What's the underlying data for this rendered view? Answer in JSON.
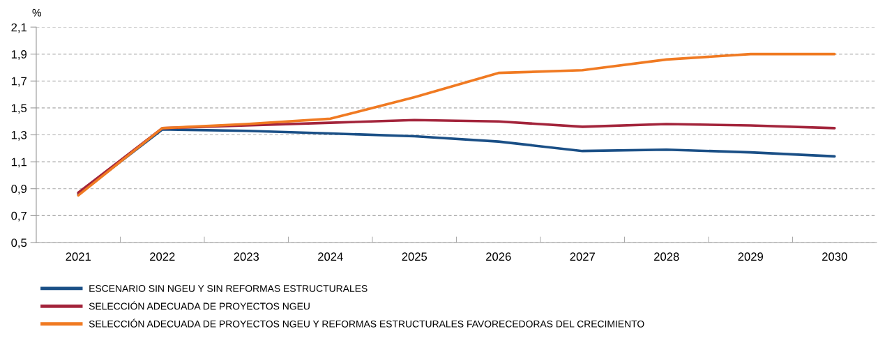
{
  "chart_data": {
    "type": "line",
    "ylabel": "%",
    "categories": [
      "2021",
      "2022",
      "2023",
      "2024",
      "2025",
      "2026",
      "2027",
      "2028",
      "2029",
      "2030"
    ],
    "series": [
      {
        "name": "ESCENARIO SIN NGEU Y SIN REFORMAS ESTRUCTURALES",
        "color": "#1a4f86",
        "values": [
          0.86,
          1.34,
          1.33,
          1.31,
          1.29,
          1.25,
          1.18,
          1.19,
          1.17,
          1.14
        ]
      },
      {
        "name": "SELECCIÓN ADECUADA DE PROYECTOS NGEU",
        "color": "#a3243b",
        "values": [
          0.87,
          1.35,
          1.37,
          1.39,
          1.41,
          1.4,
          1.36,
          1.38,
          1.37,
          1.35
        ]
      },
      {
        "name": "SELECCIÓN ADECUADA DE PROYECTOS NGEU Y REFORMAS ESTRUCTURALES FAVORECEDORAS DEL CRECIMIENTO",
        "color": "#f07a22",
        "values": [
          0.85,
          1.35,
          1.38,
          1.42,
          1.58,
          1.76,
          1.78,
          1.86,
          1.9,
          1.9
        ]
      }
    ],
    "ylim": [
      0.5,
      2.1
    ],
    "yticks": [
      {
        "value": 0.5,
        "label": "0,5"
      },
      {
        "value": 0.7,
        "label": "0,7"
      },
      {
        "value": 0.9,
        "label": "0,9"
      },
      {
        "value": 1.1,
        "label": "1,1"
      },
      {
        "value": 1.3,
        "label": "1,3"
      },
      {
        "value": 1.5,
        "label": "1,5"
      },
      {
        "value": 1.7,
        "label": "1,7"
      },
      {
        "value": 1.9,
        "label": "1,9"
      },
      {
        "value": 2.1,
        "label": "2,1"
      }
    ],
    "grid": "y",
    "legend": "bottom",
    "marker": "none",
    "line_style": "solid"
  }
}
